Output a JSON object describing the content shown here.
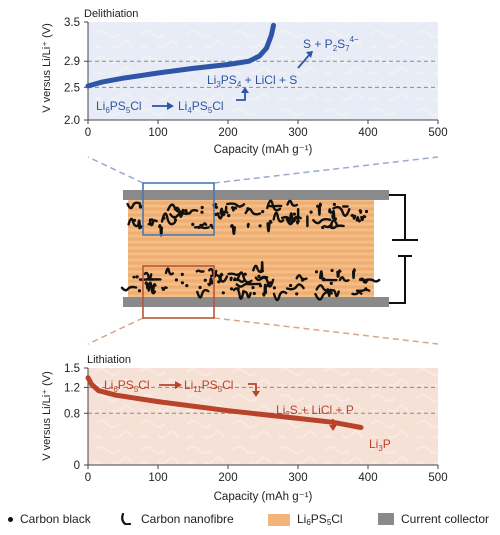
{
  "colors": {
    "delith_curve": "#2f55a6",
    "lith_curve": "#b9432a",
    "electrolyte": "#f0b679",
    "collector": "#8a8a8a",
    "delith_panel": "#e7ecf6",
    "lith_panel": "#f6e1d7",
    "delith_box": "#4a78b4",
    "lith_box": "#b9563a"
  },
  "chart_data": [
    {
      "type": "line",
      "title": "Delithiation",
      "xlabel": "Capacity (mAh g⁻¹)",
      "ylabel": "V versus Li/Li⁺ (V)",
      "xlim": [
        0,
        500
      ],
      "ylim": [
        2.0,
        3.5
      ],
      "x_ticks": [
        "0",
        "100",
        "200",
        "300",
        "400",
        "500"
      ],
      "y_ticks": [
        "2.0",
        "2.5",
        "2.9",
        "3.5"
      ],
      "reference_lines": [
        2.5,
        2.9
      ],
      "series": [
        {
          "x": [
            0,
            20,
            50,
            100,
            150,
            200,
            230,
            245,
            255,
            262,
            265
          ],
          "y": [
            2.52,
            2.58,
            2.64,
            2.72,
            2.79,
            2.85,
            2.9,
            2.98,
            3.1,
            3.3,
            3.45
          ]
        }
      ],
      "annotations": {
        "line1": [
          "S + P",
          "2",
          "S",
          "7",
          "4−"
        ],
        "line2": [
          "Li",
          "3",
          "PS",
          "4",
          " + LiCl + S"
        ],
        "line3a": [
          "Li",
          "6",
          "PS",
          "5",
          "Cl"
        ],
        "line3b": [
          "Li",
          "4",
          "PS",
          "5",
          "Cl"
        ]
      }
    },
    {
      "type": "line",
      "title": "Lithiation",
      "xlabel": "Capacity (mAh g⁻¹)",
      "ylabel": "V versus Li/Li⁺ (V)",
      "xlim": [
        0,
        500
      ],
      "ylim": [
        0,
        1.5
      ],
      "x_ticks": [
        "0",
        "100",
        "200",
        "300",
        "400",
        "500"
      ],
      "y_ticks": [
        "0",
        "0.8",
        "1.2",
        "1.5"
      ],
      "reference_lines": [
        0.8,
        1.2
      ],
      "series": [
        {
          "x": [
            0,
            5,
            15,
            40,
            100,
            200,
            300,
            350,
            390
          ],
          "y": [
            1.35,
            1.25,
            1.15,
            1.08,
            0.98,
            0.84,
            0.72,
            0.66,
            0.58
          ]
        }
      ],
      "annotations": {
        "line1a": [
          "Li",
          "6",
          "PS",
          "5",
          "Cl"
        ],
        "line1b": [
          "Li",
          "11",
          "PS",
          "5",
          "Cl"
        ],
        "line2": [
          "Li",
          "2",
          "S + LiCl + P"
        ],
        "line3": [
          "Li",
          "3",
          "P"
        ]
      }
    }
  ],
  "legend": {
    "carbon_black": "Carbon black",
    "carbon_nanofibre": "Carbon nanofibre",
    "electrolyte_main": "Li",
    "electrolyte_sub1": "6",
    "electrolyte_mid": "PS",
    "electrolyte_sub2": "5",
    "electrolyte_end": "Cl",
    "current_collector": "Current collector"
  }
}
